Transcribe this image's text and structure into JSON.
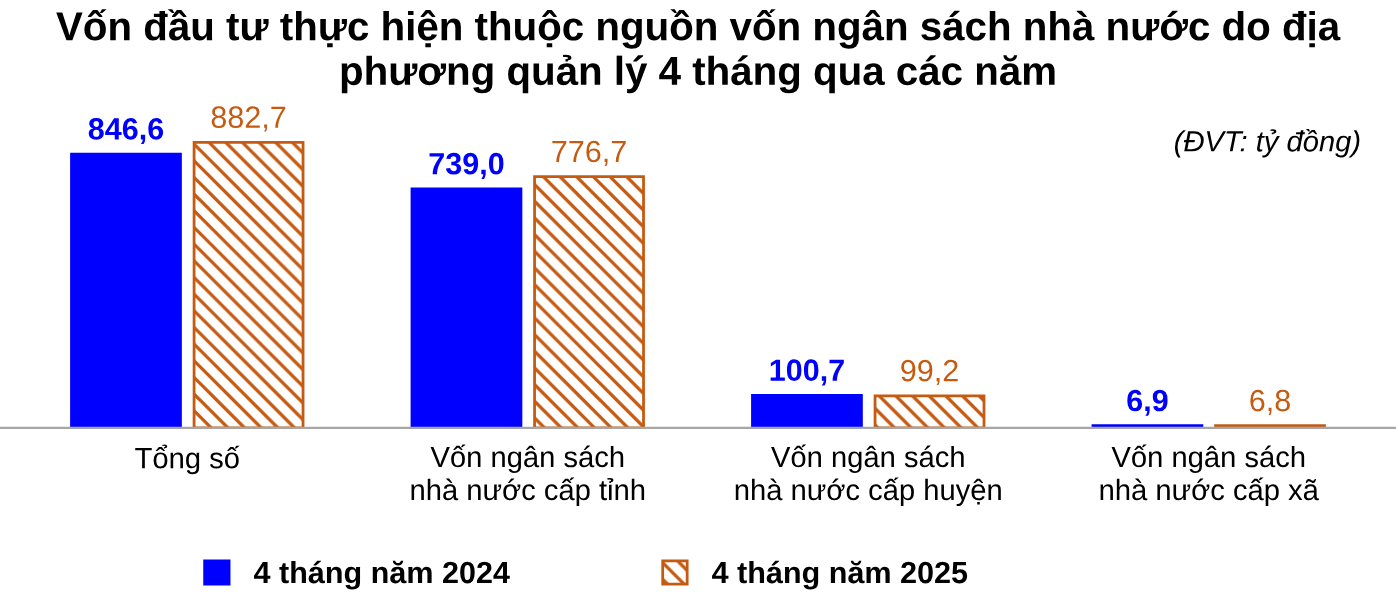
{
  "chart_data": {
    "type": "bar",
    "title": "Vốn đầu tư thực hiện thuộc nguồn vốn ngân sách nhà nước do địa phương quản lý 4 tháng qua các năm",
    "annotations": [
      "(ĐVT: tỷ đồng)"
    ],
    "categories": [
      "Tổng số",
      "Vốn ngân sách\nnhà nước cấp tỉnh",
      "Vốn ngân sách\nnhà nước cấp huyện",
      "Vốn ngân sách\nnhà nước cấp xã"
    ],
    "series": [
      {
        "name": "4 tháng năm 2024",
        "color": "#0000ff",
        "values": [
          846.6,
          739.0,
          100.7,
          6.9
        ],
        "value_labels": [
          "846,6",
          "739,0",
          "100,7",
          "6,9"
        ]
      },
      {
        "name": "4 tháng năm 2025",
        "color": "#c55a11",
        "values": [
          882.7,
          776.7,
          99.2,
          6.8
        ],
        "value_labels": [
          "882,7",
          "776,7",
          "99,2",
          "6,8"
        ]
      }
    ],
    "legend": "bottom",
    "grid": false
  }
}
